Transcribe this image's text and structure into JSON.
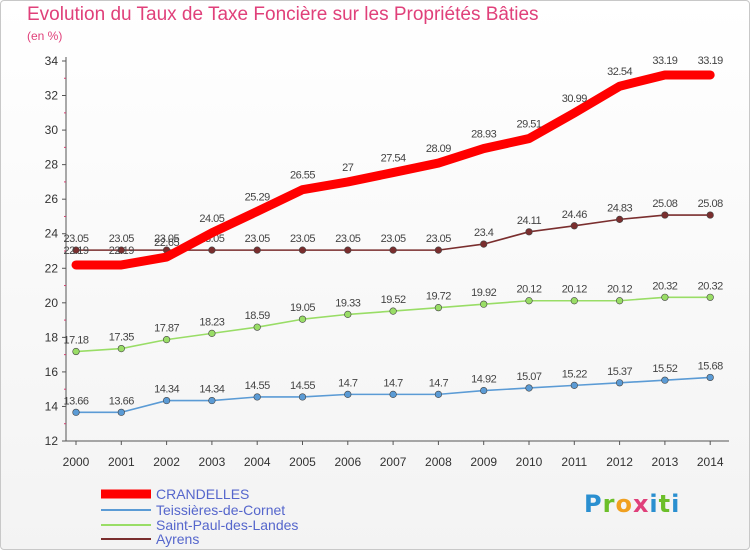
{
  "title": "Evolution du Taux de Taxe Foncière sur les Propriétés Bâties",
  "unit_label": "(en %)",
  "logo_text": "Proxiti",
  "chart_data": {
    "type": "line",
    "title": "Evolution du Taux de Taxe Foncière sur les Propriétés Bâties",
    "ylabel": "(en %)",
    "xlabel": "",
    "x": [
      "2000",
      "2001",
      "2002",
      "2003",
      "2004",
      "2005",
      "2006",
      "2007",
      "2008",
      "2009",
      "2010",
      "2011",
      "2012",
      "2013",
      "2014"
    ],
    "ylim": [
      12,
      34
    ],
    "yticks": [
      "12",
      "14",
      "16",
      "18",
      "20",
      "22",
      "24",
      "26",
      "28",
      "30",
      "32",
      "34"
    ],
    "grid": false,
    "legend_position": "bottom-left",
    "series": [
      {
        "name": "CRANDELLES",
        "color": "#ff0000",
        "values": [
          22.19,
          22.19,
          22.65,
          24.05,
          25.29,
          26.55,
          27,
          27.54,
          28.09,
          28.93,
          29.51,
          30.99,
          32.54,
          33.19,
          33.19
        ],
        "labels": [
          "22.19",
          "22.19",
          "22.65",
          "24.05",
          "25.29",
          "26.55",
          "27",
          "27.54",
          "28.09",
          "28.93",
          "29.51",
          "30.99",
          "32.54",
          "33.19",
          "33.19"
        ]
      },
      {
        "name": "Teissières-de-Cornet",
        "color": "#5b9bd5",
        "values": [
          13.66,
          13.66,
          14.34,
          14.34,
          14.55,
          14.55,
          14.7,
          14.7,
          14.7,
          14.92,
          15.07,
          15.22,
          15.37,
          15.52,
          15.68
        ],
        "labels": [
          "13.66",
          "13.66",
          "14.34",
          "14.34",
          "14.55",
          "14.55",
          "14.7",
          "14.7",
          "14.7",
          "14.92",
          "15.07",
          "15.22",
          "15.37",
          "15.52",
          "15.68"
        ]
      },
      {
        "name": "Saint-Paul-des-Landes",
        "color": "#99dd66",
        "values": [
          17.18,
          17.35,
          17.87,
          18.23,
          18.59,
          19.05,
          19.33,
          19.52,
          19.72,
          19.92,
          20.12,
          20.12,
          20.12,
          20.32,
          20.32
        ],
        "labels": [
          "17.18",
          "17.35",
          "17.87",
          "18.23",
          "18.59",
          "19.05",
          "19.33",
          "19.52",
          "19.72",
          "19.92",
          "20.12",
          "20.12",
          "20.12",
          "20.32",
          "20.32"
        ]
      },
      {
        "name": "Ayrens",
        "color": "#7a2e2e",
        "values": [
          23.05,
          23.05,
          23.05,
          23.05,
          23.05,
          23.05,
          23.05,
          23.05,
          23.05,
          23.4,
          24.11,
          24.46,
          24.83,
          25.08,
          25.08
        ],
        "labels": [
          "23.05",
          "23.05",
          "23.05",
          "23.05",
          "23.05",
          "23.05",
          "23.05",
          "23.05",
          "23.05",
          "23.4",
          "24.11",
          "24.46",
          "24.83",
          "25.08",
          "25.08"
        ]
      }
    ]
  }
}
